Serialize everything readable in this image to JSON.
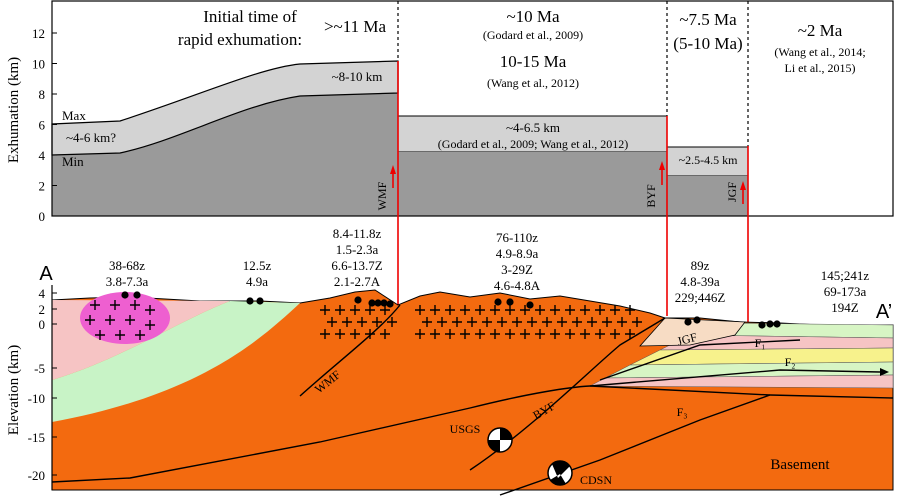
{
  "exhumation_panel": {
    "y_axis_label": "Exhumation (km)",
    "y_ticks": [
      0,
      2,
      4,
      6,
      8,
      10,
      12
    ],
    "initial_time_label": [
      "Initial time of",
      "rapid exhumation:"
    ],
    "wmf_zone": {
      "age": ">~11 Ma",
      "max_label": "Max",
      "min_label": "Min",
      "range_west": "~4-6 km?",
      "range_east": "~8-10 km",
      "fault": "WMF"
    },
    "byf_zone": {
      "age_lines": [
        "~10 Ma",
        "(Godard et al., 2009)",
        "10-15 Ma",
        "(Wang et al., 2012)"
      ],
      "range": "~4-6.5 km",
      "range_source": "(Godard et al., 2009; Wang et al., 2012)",
      "fault": "BYF"
    },
    "jgf_zone": {
      "age_lines": [
        "~7.5 Ma",
        "(5-10 Ma)"
      ],
      "range": "~2.5-4.5 km",
      "fault": "JGF"
    },
    "east_zone": {
      "age_lines": [
        "~2 Ma",
        "(Wang et al., 2014;",
        "Li et al., 2015)"
      ]
    }
  },
  "cross_section": {
    "y_axis_label": "Elevation (km)",
    "y_ticks": [
      4,
      2,
      0,
      -5,
      -10,
      -15,
      -20
    ],
    "start_label": "A",
    "end_label": "A’",
    "ages": [
      [
        "38-68z",
        "3.8-7.3a"
      ],
      [
        "12.5z",
        "4.9a"
      ],
      [
        "8.4-11.8z",
        "1.5-2.3a",
        "6.6-13.7Z",
        "2.1-2.7A"
      ],
      [
        "76-110z",
        "4.9-8.9a",
        "3-29Z",
        "4.6-4.8A"
      ],
      [
        "89z",
        "4.8-39a",
        "229;446Z"
      ],
      [
        "145;241z",
        "69-173a",
        "194Z"
      ]
    ],
    "faults": {
      "wmf": "WMF",
      "byf": "BYF",
      "jgf": "JGF",
      "f1": "F₁",
      "f2": "F₂",
      "f3": "F₃"
    },
    "stations": [
      "USGS",
      "CDSN"
    ],
    "basement": "Basement"
  }
}
